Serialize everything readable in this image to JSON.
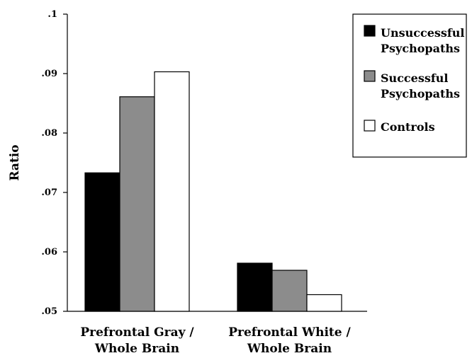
{
  "chart_data": {
    "type": "bar",
    "title": "",
    "ylabel": "Ratio",
    "xlabel": "",
    "ylim": [
      0.05,
      0.1
    ],
    "y_ticks": [
      {
        "value": 0.05,
        "label": ".05"
      },
      {
        "value": 0.06,
        "label": ".06"
      },
      {
        "value": 0.07,
        "label": ".07"
      },
      {
        "value": 0.08,
        "label": ".08"
      },
      {
        "value": 0.09,
        "label": ".09"
      },
      {
        "value": 0.1,
        "label": ".1"
      }
    ],
    "categories": [
      [
        "Prefrontal Gray /",
        "Whole Brain"
      ],
      [
        "Prefrontal White /",
        "Whole Brain"
      ]
    ],
    "series": [
      {
        "name": [
          "Unsuccessful",
          "Psychopaths"
        ],
        "color": "#000000",
        "values": [
          0.0733,
          0.0581
        ]
      },
      {
        "name": [
          "Successful",
          "Psychopaths"
        ],
        "color": "#8c8c8c",
        "values": [
          0.0861,
          0.0569
        ]
      },
      {
        "name": [
          "Controls"
        ],
        "color": "#ffffff",
        "values": [
          0.0903,
          0.0528
        ]
      }
    ],
    "legend_position": "top-right",
    "grid": false
  }
}
